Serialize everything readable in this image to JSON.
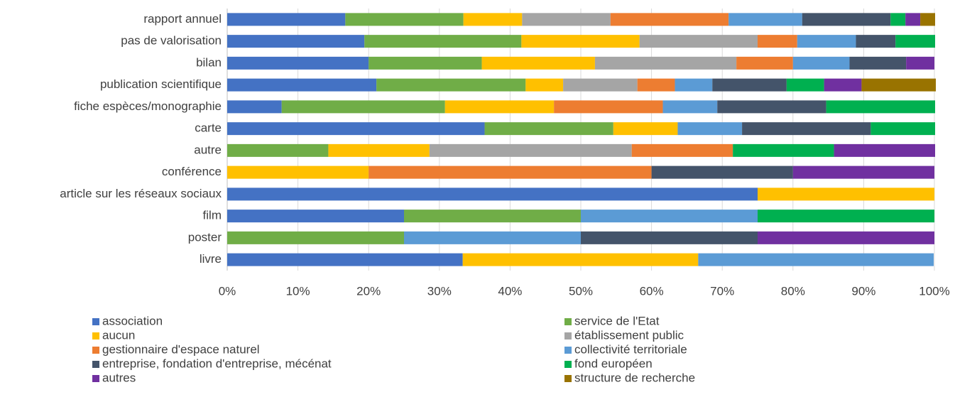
{
  "chart_data": {
    "type": "stacked_bar_horizontal",
    "categories": [
      "rapport annuel",
      "pas de valorisation",
      "bilan",
      "publication scientifique",
      "fiche espèces/monographie",
      "carte",
      "autre",
      "conférence",
      "article sur les réseaux sociaux",
      "film",
      "poster",
      "livre"
    ],
    "series": [
      {
        "name": "association",
        "color": "#4472c4",
        "values": [
          16.7,
          19.4,
          20,
          21.1,
          7.7,
          36.4,
          0,
          0,
          75,
          25,
          0,
          33.3
        ]
      },
      {
        "name": "service de l'Etat",
        "color": "#70ad47",
        "values": [
          16.7,
          22.2,
          16,
          21.1,
          23.1,
          18.2,
          14.3,
          0,
          0,
          25,
          25,
          0
        ]
      },
      {
        "name": "aucun",
        "color": "#ffc000",
        "values": [
          8.3,
          16.7,
          16,
          5.3,
          15.4,
          9.1,
          14.3,
          20,
          25,
          0,
          0,
          33.3
        ]
      },
      {
        "name": "établissement public",
        "color": "#a5a5a5",
        "values": [
          12.5,
          16.7,
          20,
          10.5,
          0,
          0,
          28.6,
          0,
          0,
          0,
          0,
          0
        ]
      },
      {
        "name": "gestionnaire d'espace naturel",
        "color": "#ed7d31",
        "values": [
          16.7,
          5.6,
          8,
          5.3,
          15.4,
          0,
          14.3,
          40,
          0,
          0,
          0,
          0
        ]
      },
      {
        "name": "collectivité territoriale",
        "color": "#5b9bd5",
        "values": [
          10.4,
          8.3,
          8,
          5.3,
          7.7,
          9.1,
          0,
          0,
          0,
          25,
          25,
          33.3
        ]
      },
      {
        "name": "entreprise, fondation d'entreprise, mécénat",
        "color": "#44546a",
        "values": [
          12.5,
          5.6,
          8,
          10.5,
          15.4,
          18.2,
          0,
          20,
          0,
          0,
          25,
          0
        ]
      },
      {
        "name": "fond européen",
        "color": "#00b050",
        "values": [
          2.1,
          5.6,
          0,
          5.3,
          15.4,
          9.1,
          14.3,
          0,
          0,
          25,
          0,
          0
        ]
      },
      {
        "name": "autres",
        "color": "#7030a0",
        "values": [
          2.1,
          0,
          4,
          5.3,
          0,
          0,
          14.3,
          20,
          0,
          0,
          25,
          0
        ]
      },
      {
        "name": "structure de recherche",
        "color": "#997300",
        "values": [
          2.1,
          0,
          0,
          10.5,
          0,
          0,
          0,
          0,
          0,
          0,
          0,
          0
        ]
      }
    ],
    "xlim": [
      0,
      100
    ],
    "xticks": [
      {
        "value": 0,
        "label": "0%"
      },
      {
        "value": 10,
        "label": "10%"
      },
      {
        "value": 20,
        "label": "20%"
      },
      {
        "value": 30,
        "label": "30%"
      },
      {
        "value": 40,
        "label": "40%"
      },
      {
        "value": 50,
        "label": "50%"
      },
      {
        "value": 60,
        "label": "60%"
      },
      {
        "value": 70,
        "label": "70%"
      },
      {
        "value": 80,
        "label": "80%"
      },
      {
        "value": 90,
        "label": "90%"
      },
      {
        "value": 100,
        "label": "100%"
      }
    ],
    "grid": true,
    "legend": "bottom"
  }
}
